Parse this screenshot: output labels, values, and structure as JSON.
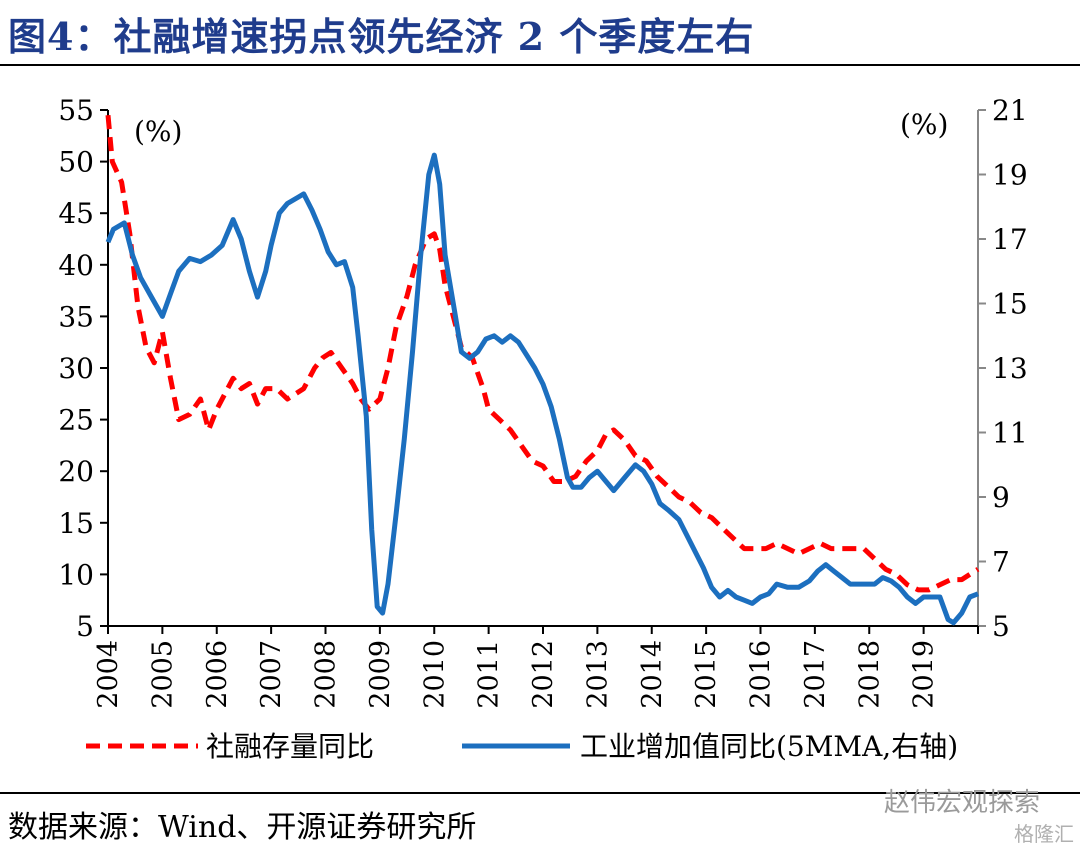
{
  "title": "图4：社融增速拐点领先经济 2 个季度左右",
  "source": "数据来源：Wind、开源证券研究所",
  "watermark": "赵伟宏观探索",
  "watermark2": "格隆汇",
  "chart_data": {
    "type": "line",
    "left_unit": "(%)",
    "right_unit": "(%)",
    "x_ticks": [
      "2004",
      "2005",
      "2006",
      "2007",
      "2008",
      "2009",
      "2010",
      "2011",
      "2012",
      "2013",
      "2014",
      "2015",
      "2016",
      "2017",
      "2018",
      "2019"
    ],
    "xlim": [
      2004,
      2020
    ],
    "ylim_left": [
      5,
      55
    ],
    "yticks_left": [
      "5",
      "10",
      "15",
      "20",
      "25",
      "30",
      "35",
      "40",
      "45",
      "50",
      "55"
    ],
    "ylim_right": [
      5,
      21
    ],
    "yticks_right": [
      "5",
      "7",
      "9",
      "11",
      "13",
      "15",
      "17",
      "19",
      "21"
    ],
    "colors": {
      "series1": "#ff0000",
      "series2": "#1c6fbf"
    },
    "series": [
      {
        "name": "社融存量同比",
        "axis": "left",
        "style": "dashed",
        "points": [
          [
            2004.0,
            54.5
          ],
          [
            2004.08,
            50
          ],
          [
            2004.25,
            48
          ],
          [
            2004.4,
            43
          ],
          [
            2004.55,
            36
          ],
          [
            2004.7,
            32
          ],
          [
            2004.85,
            30.5
          ],
          [
            2005.0,
            33.5
          ],
          [
            2005.15,
            29
          ],
          [
            2005.3,
            25
          ],
          [
            2005.5,
            25.5
          ],
          [
            2005.7,
            27
          ],
          [
            2005.85,
            24
          ],
          [
            2006.0,
            26
          ],
          [
            2006.15,
            27.5
          ],
          [
            2006.3,
            29
          ],
          [
            2006.45,
            28
          ],
          [
            2006.6,
            28.5
          ],
          [
            2006.75,
            26.5
          ],
          [
            2006.9,
            28
          ],
          [
            2007.1,
            28
          ],
          [
            2007.3,
            27
          ],
          [
            2007.45,
            27.5
          ],
          [
            2007.6,
            28
          ],
          [
            2007.8,
            30
          ],
          [
            2007.95,
            31
          ],
          [
            2008.1,
            31.5
          ],
          [
            2008.3,
            30
          ],
          [
            2008.5,
            28.5
          ],
          [
            2008.65,
            27
          ],
          [
            2008.8,
            26
          ],
          [
            2009.0,
            27
          ],
          [
            2009.15,
            30
          ],
          [
            2009.3,
            34
          ],
          [
            2009.5,
            37
          ],
          [
            2009.65,
            40
          ],
          [
            2009.85,
            42.5
          ],
          [
            2010.0,
            43
          ],
          [
            2010.1,
            41.5
          ],
          [
            2010.2,
            38
          ],
          [
            2010.35,
            35
          ],
          [
            2010.5,
            32
          ],
          [
            2010.7,
            31
          ],
          [
            2010.9,
            28
          ],
          [
            2011.0,
            26
          ],
          [
            2011.2,
            25
          ],
          [
            2011.4,
            24
          ],
          [
            2011.6,
            22.5
          ],
          [
            2011.8,
            21
          ],
          [
            2012.0,
            20.5
          ],
          [
            2012.2,
            19
          ],
          [
            2012.4,
            19
          ],
          [
            2012.6,
            19.5
          ],
          [
            2012.8,
            21
          ],
          [
            2013.0,
            22
          ],
          [
            2013.15,
            23.5
          ],
          [
            2013.3,
            24
          ],
          [
            2013.5,
            23
          ],
          [
            2013.7,
            21.5
          ],
          [
            2013.9,
            21
          ],
          [
            2014.1,
            19.5
          ],
          [
            2014.3,
            18.5
          ],
          [
            2014.5,
            17.5
          ],
          [
            2014.7,
            17
          ],
          [
            2014.9,
            16
          ],
          [
            2015.1,
            15.5
          ],
          [
            2015.3,
            14.5
          ],
          [
            2015.5,
            13.5
          ],
          [
            2015.7,
            12.5
          ],
          [
            2015.9,
            12.5
          ],
          [
            2016.1,
            12.5
          ],
          [
            2016.3,
            13
          ],
          [
            2016.5,
            12.5
          ],
          [
            2016.7,
            12
          ],
          [
            2016.9,
            12.5
          ],
          [
            2017.1,
            13
          ],
          [
            2017.3,
            12.5
          ],
          [
            2017.5,
            12.5
          ],
          [
            2017.7,
            12.5
          ],
          [
            2017.9,
            12.5
          ],
          [
            2018.1,
            11.5
          ],
          [
            2018.3,
            10.5
          ],
          [
            2018.5,
            10
          ],
          [
            2018.7,
            9
          ],
          [
            2018.9,
            8.5
          ],
          [
            2019.1,
            8.5
          ],
          [
            2019.3,
            9
          ],
          [
            2019.5,
            9.5
          ],
          [
            2019.7,
            9.5
          ],
          [
            2019.85,
            10
          ],
          [
            2020.0,
            10.5
          ]
        ]
      },
      {
        "name": "工业增加值同比(5MMA,右轴)",
        "axis": "right",
        "style": "solid",
        "points": [
          [
            2004.0,
            16.9
          ],
          [
            2004.1,
            17.3
          ],
          [
            2004.3,
            17.5
          ],
          [
            2004.45,
            16.5
          ],
          [
            2004.6,
            15.8
          ],
          [
            2004.8,
            15.2
          ],
          [
            2005.0,
            14.6
          ],
          [
            2005.15,
            15.3
          ],
          [
            2005.3,
            16.0
          ],
          [
            2005.5,
            16.4
          ],
          [
            2005.7,
            16.3
          ],
          [
            2005.9,
            16.5
          ],
          [
            2006.1,
            16.8
          ],
          [
            2006.3,
            17.6
          ],
          [
            2006.45,
            17.0
          ],
          [
            2006.6,
            16.0
          ],
          [
            2006.75,
            15.2
          ],
          [
            2006.9,
            16.0
          ],
          [
            2007.0,
            16.8
          ],
          [
            2007.15,
            17.8
          ],
          [
            2007.3,
            18.1
          ],
          [
            2007.5,
            18.3
          ],
          [
            2007.6,
            18.4
          ],
          [
            2007.75,
            17.9
          ],
          [
            2007.9,
            17.3
          ],
          [
            2008.05,
            16.6
          ],
          [
            2008.2,
            16.2
          ],
          [
            2008.35,
            16.3
          ],
          [
            2008.5,
            15.5
          ],
          [
            2008.6,
            14.0
          ],
          [
            2008.75,
            11.5
          ],
          [
            2008.85,
            8.0
          ],
          [
            2008.95,
            5.6
          ],
          [
            2009.05,
            5.4
          ],
          [
            2009.15,
            6.3
          ],
          [
            2009.3,
            8.5
          ],
          [
            2009.45,
            10.8
          ],
          [
            2009.6,
            13.5
          ],
          [
            2009.75,
            16.5
          ],
          [
            2009.9,
            19.0
          ],
          [
            2010.0,
            19.6
          ],
          [
            2010.1,
            18.7
          ],
          [
            2010.2,
            16.5
          ],
          [
            2010.35,
            15.0
          ],
          [
            2010.5,
            13.5
          ],
          [
            2010.65,
            13.3
          ],
          [
            2010.8,
            13.5
          ],
          [
            2010.95,
            13.9
          ],
          [
            2011.1,
            14.0
          ],
          [
            2011.25,
            13.8
          ],
          [
            2011.4,
            14.0
          ],
          [
            2011.55,
            13.8
          ],
          [
            2011.7,
            13.4
          ],
          [
            2011.85,
            13.0
          ],
          [
            2012.0,
            12.5
          ],
          [
            2012.15,
            11.8
          ],
          [
            2012.3,
            10.8
          ],
          [
            2012.45,
            9.6
          ],
          [
            2012.55,
            9.3
          ],
          [
            2012.7,
            9.3
          ],
          [
            2012.85,
            9.6
          ],
          [
            2013.0,
            9.8
          ],
          [
            2013.15,
            9.5
          ],
          [
            2013.3,
            9.2
          ],
          [
            2013.5,
            9.6
          ],
          [
            2013.7,
            10.0
          ],
          [
            2013.85,
            9.8
          ],
          [
            2014.0,
            9.4
          ],
          [
            2014.15,
            8.8
          ],
          [
            2014.3,
            8.6
          ],
          [
            2014.5,
            8.3
          ],
          [
            2014.65,
            7.8
          ],
          [
            2014.8,
            7.3
          ],
          [
            2014.95,
            6.8
          ],
          [
            2015.1,
            6.2
          ],
          [
            2015.25,
            5.9
          ],
          [
            2015.4,
            6.1
          ],
          [
            2015.55,
            5.9
          ],
          [
            2015.7,
            5.8
          ],
          [
            2015.85,
            5.7
          ],
          [
            2016.0,
            5.9
          ],
          [
            2016.15,
            6.0
          ],
          [
            2016.3,
            6.3
          ],
          [
            2016.5,
            6.2
          ],
          [
            2016.7,
            6.2
          ],
          [
            2016.9,
            6.4
          ],
          [
            2017.05,
            6.7
          ],
          [
            2017.2,
            6.9
          ],
          [
            2017.35,
            6.7
          ],
          [
            2017.5,
            6.5
          ],
          [
            2017.65,
            6.3
          ],
          [
            2017.8,
            6.3
          ],
          [
            2017.95,
            6.3
          ],
          [
            2018.1,
            6.3
          ],
          [
            2018.25,
            6.5
          ],
          [
            2018.4,
            6.4
          ],
          [
            2018.55,
            6.2
          ],
          [
            2018.7,
            5.9
          ],
          [
            2018.85,
            5.7
          ],
          [
            2019.0,
            5.9
          ],
          [
            2019.1,
            5.9
          ],
          [
            2019.2,
            5.9
          ],
          [
            2019.3,
            5.9
          ],
          [
            2019.45,
            5.2
          ],
          [
            2019.55,
            5.1
          ],
          [
            2019.7,
            5.4
          ],
          [
            2019.85,
            5.9
          ],
          [
            2020.0,
            6.0
          ]
        ]
      }
    ]
  }
}
